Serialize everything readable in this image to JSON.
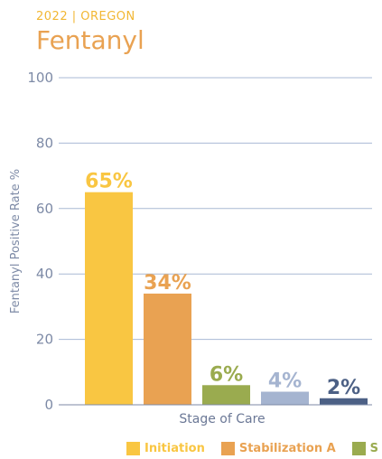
{
  "header": {
    "subtitle": "2022 | OREGON",
    "title": "Fentanyl"
  },
  "chart_data": {
    "type": "bar",
    "categories": [
      "Initiation",
      "Stabilization A",
      "S",
      "",
      ""
    ],
    "values": [
      65,
      34,
      6,
      4,
      2
    ],
    "data_labels": [
      "65%",
      "34%",
      "6%",
      "4%",
      "2%"
    ],
    "colors": [
      "#f9c642",
      "#e9a252",
      "#9aab4f",
      "#a5b4d0",
      "#4c6085"
    ],
    "xlabel": "Stage of Care",
    "ylabel": "Fentanyl Positive Rate %",
    "ylim": [
      0,
      100
    ],
    "yticks": [
      0,
      20,
      40,
      60,
      80,
      100
    ],
    "grid": true,
    "legend_position": "bottom"
  },
  "legend": [
    {
      "label": "Initiation",
      "color": "#f9c642"
    },
    {
      "label": "Stabilization A",
      "color": "#e9a252"
    },
    {
      "label": "S",
      "color": "#9aab4f"
    }
  ]
}
